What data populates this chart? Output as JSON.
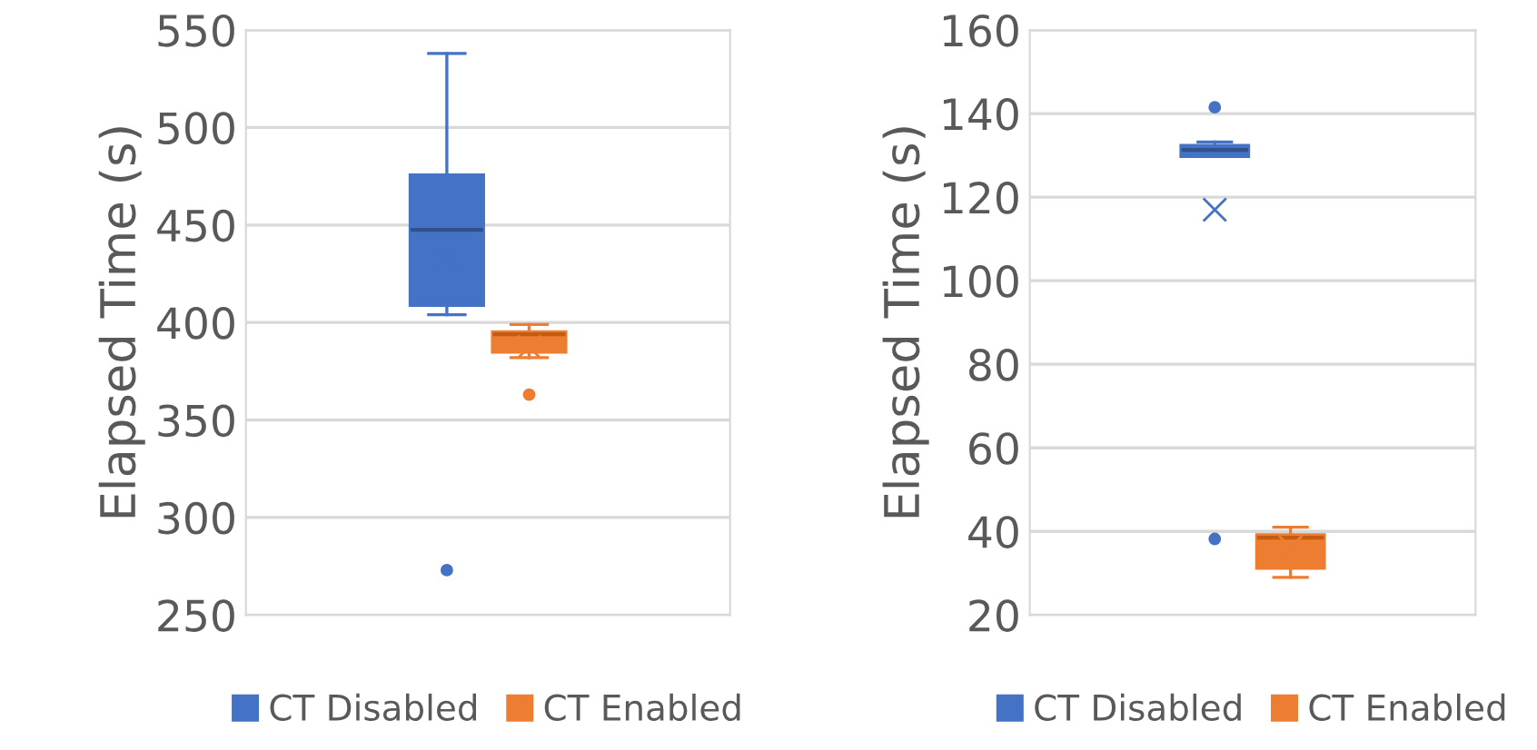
{
  "chart_data": [
    {
      "type": "box",
      "categories": [
        null
      ],
      "ylabel": "Elapsed Time (s)",
      "ylim": [
        250,
        550
      ],
      "yticks": [
        250,
        300,
        350,
        400,
        450,
        500,
        550
      ],
      "grid": "y",
      "legend": "bottom",
      "tick_labels": "y",
      "series": [
        {
          "name": "CT Disabled",
          "color": "#4472c4",
          "boxes": [
            {
              "low": 404,
              "q1": 409,
              "median": 447.5,
              "q3": 475.5,
              "high": 538,
              "mean": 432,
              "outliers": [
                273
              ]
            }
          ]
        },
        {
          "name": "CT Enabled",
          "color": "#ed7d31",
          "boxes": [
            {
              "low": 382,
              "q1": 385,
              "median": 394,
              "q3": 395,
              "high": 399,
              "mean": 387.5,
              "outliers": [
                363
              ]
            }
          ]
        }
      ]
    },
    {
      "type": "box",
      "categories": [
        null
      ],
      "ylabel": "Elapsed Time (s)",
      "ylim": [
        20,
        160
      ],
      "yticks": [
        20,
        40,
        60,
        80,
        100,
        120,
        140,
        160
      ],
      "grid": "y",
      "legend": "bottom",
      "tick_labels": "y",
      "series": [
        {
          "name": "CT Disabled",
          "color": "#4472c4",
          "boxes": [
            {
              "low": 129.8,
              "q1": 129.8,
              "median": 131.3,
              "q3": 132.3,
              "high": 133.2,
              "mean": 117,
              "outliers": [
                141.5,
                38.2
              ]
            }
          ]
        },
        {
          "name": "CT Enabled",
          "color": "#ed7d31",
          "boxes": [
            {
              "low": 29,
              "q1": 31.3,
              "median": 38.5,
              "q3": 39.1,
              "high": 41,
              "mean": 36.2
            }
          ]
        }
      ]
    }
  ]
}
